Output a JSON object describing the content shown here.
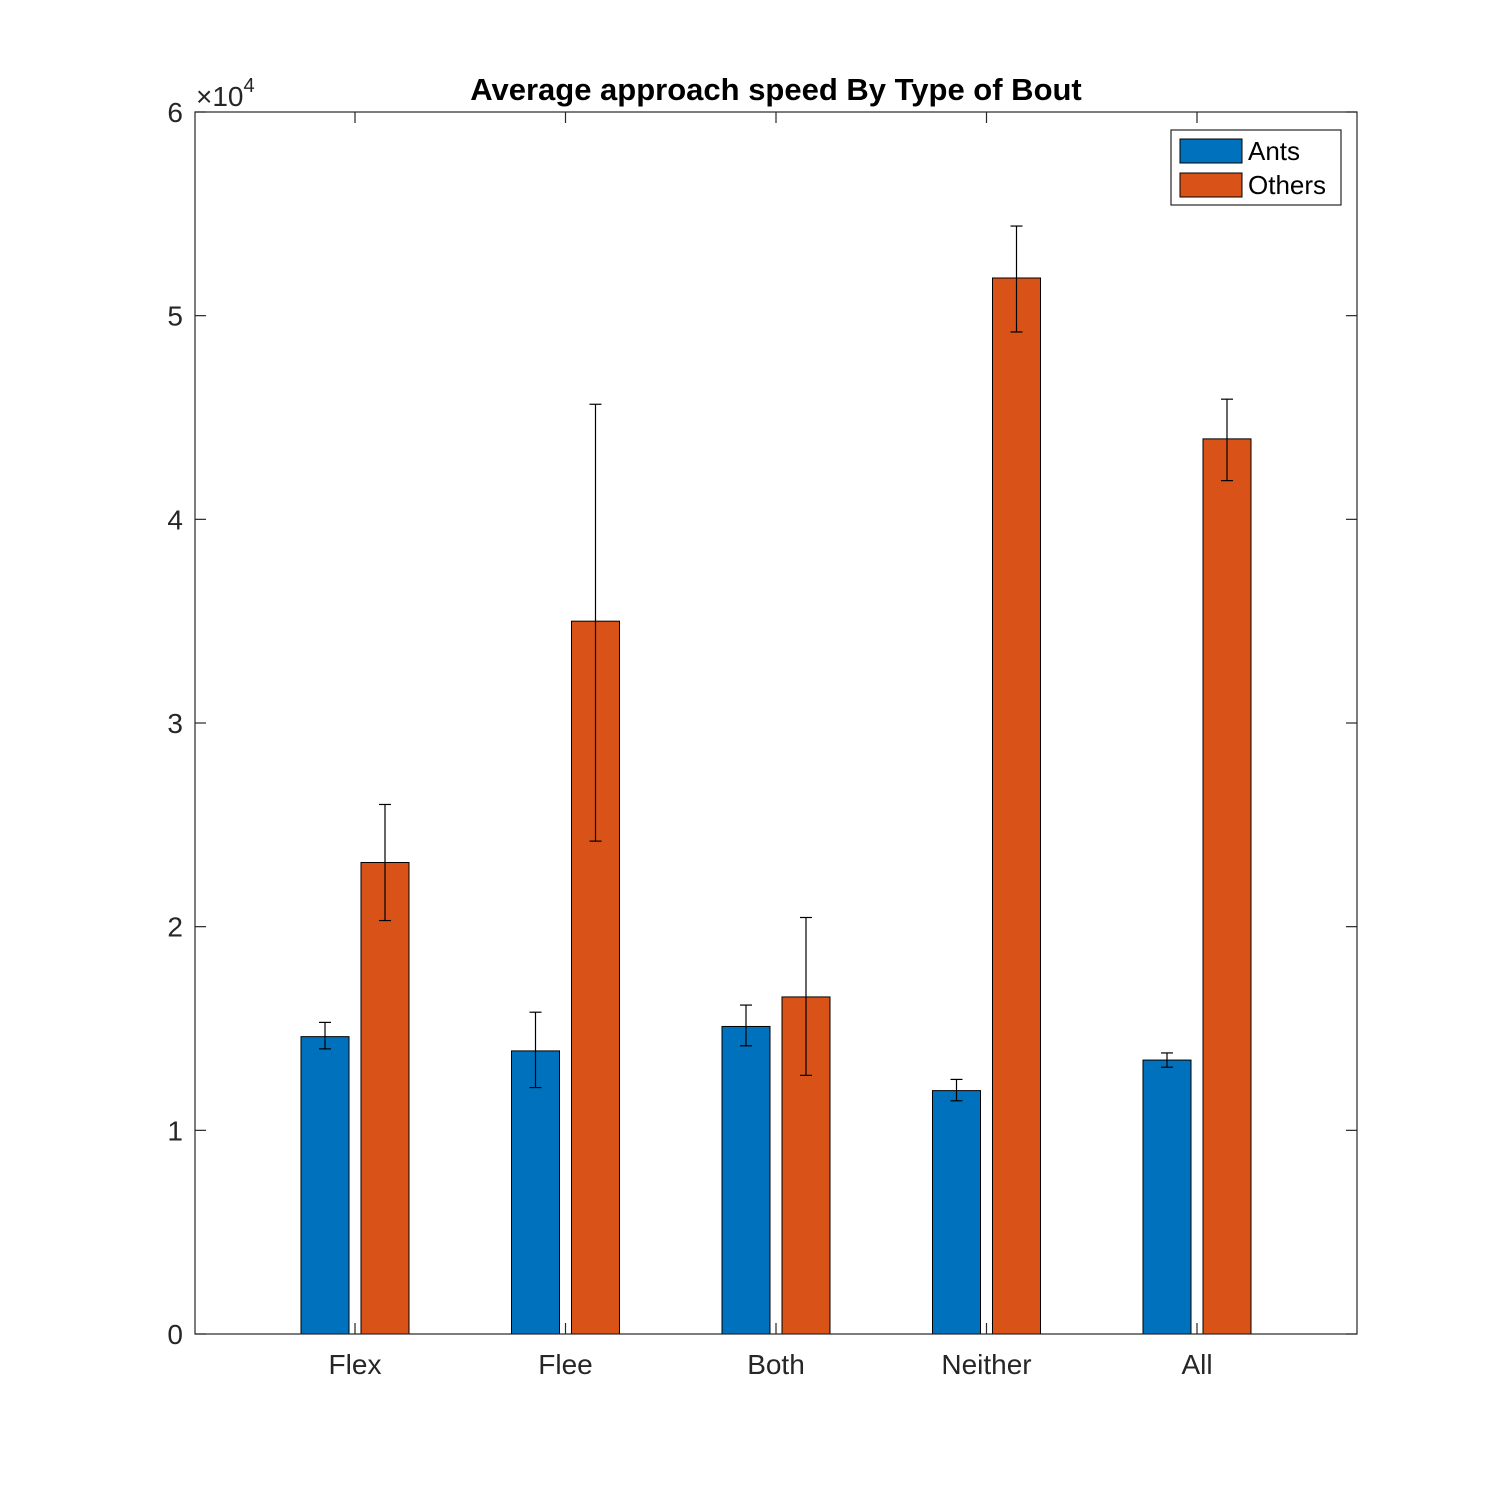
{
  "chart_data": {
    "type": "bar",
    "title": "Average approach speed By Type of Bout",
    "categories": [
      "Flex",
      "Flee",
      "Both",
      "Neither",
      "All"
    ],
    "series": [
      {
        "name": "Ants",
        "color": "#0072BD",
        "values": [
          14600,
          13900,
          15100,
          11950,
          13450
        ],
        "error_low": [
          14000,
          12100,
          14150,
          11450,
          13100
        ],
        "error_high": [
          15300,
          15800,
          16150,
          12500,
          13800
        ]
      },
      {
        "name": "Others",
        "color": "#D95319",
        "values": [
          23150,
          35000,
          16550,
          51850,
          43950
        ],
        "error_low": [
          20300,
          24200,
          12700,
          49200,
          41900
        ],
        "error_high": [
          26000,
          45650,
          20450,
          54400,
          45900
        ]
      }
    ],
    "ylim": [
      0,
      60000
    ],
    "yticks": [
      0,
      10000,
      20000,
      30000,
      40000,
      50000,
      60000
    ],
    "ytick_labels": [
      "0",
      "1",
      "2",
      "3",
      "4",
      "5",
      "6"
    ],
    "y_exponent_label": {
      "base": "×10",
      "power": "4"
    },
    "xlabel": "",
    "ylabel": "",
    "legend_position": "top-right",
    "grid": false
  }
}
